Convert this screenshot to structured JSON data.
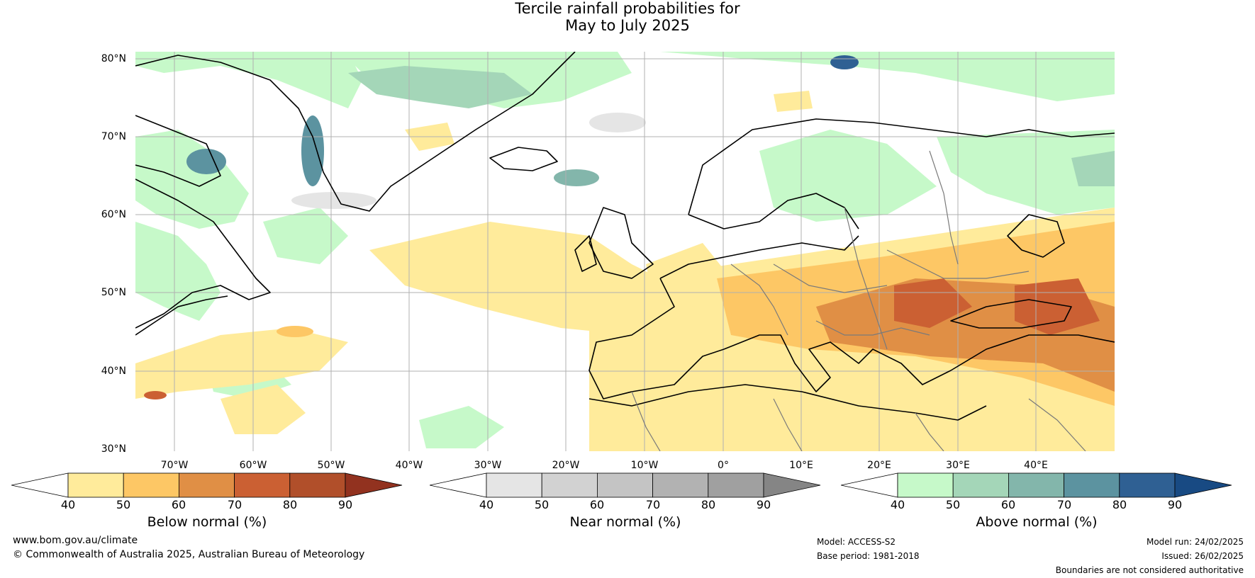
{
  "title": {
    "line1": "Tercile rainfall probabilities for",
    "line2": "May to July 2025"
  },
  "map": {
    "lat_labels": [
      "80°N",
      "70°N",
      "60°N",
      "50°N",
      "40°N",
      "30°N"
    ],
    "lon_labels": [
      "70°W",
      "60°W",
      "50°W",
      "40°W",
      "30°W",
      "20°W",
      "10°W",
      "0°",
      "10°E",
      "20°E",
      "30°E",
      "40°E"
    ],
    "extent": {
      "lon_min": -75,
      "lon_max": 50,
      "lat_min": 30,
      "lat_max": 81
    },
    "colors": {
      "below": [
        "#ffeb9b",
        "#fdc765",
        "#e08f45",
        "#cb6033",
        "#b14f2a",
        "#92321f"
      ],
      "near": [
        "#e5e5e5",
        "#d2d2d2",
        "#c4c4c4",
        "#b2b2b2",
        "#a0a0a0",
        "#858585"
      ],
      "above": [
        "#c6f9c9",
        "#a4d6b8",
        "#83b6ab",
        "#5c93a0",
        "#2f6093",
        "#184a83"
      ]
    }
  },
  "colorbars": [
    {
      "title": "Below normal (%)",
      "ticks": [
        "40",
        "50",
        "60",
        "70",
        "80",
        "90"
      ],
      "palette": "below"
    },
    {
      "title": "Near normal (%)",
      "ticks": [
        "40",
        "50",
        "60",
        "70",
        "80",
        "90"
      ],
      "palette": "near"
    },
    {
      "title": "Above normal (%)",
      "ticks": [
        "40",
        "50",
        "60",
        "70",
        "80",
        "90"
      ],
      "palette": "above"
    }
  ],
  "footer": {
    "website": "www.bom.gov.au/climate",
    "copyright": "© Commonwealth of Australia 2025, Australian Bureau of Meteorology",
    "model": "Model: ACCESS-S2",
    "base_period": "Base period: 1981-2018",
    "model_run": "Model run: 24/02/2025",
    "issued": "Issued: 26/02/2025",
    "disclaimer": "Boundaries are not considered authoritative"
  }
}
